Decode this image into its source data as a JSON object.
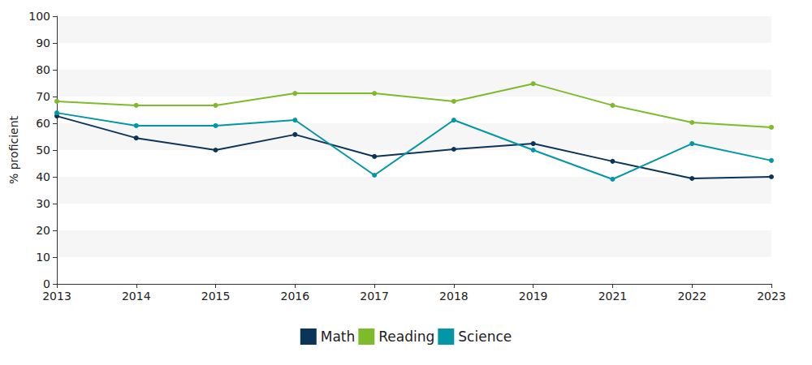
{
  "chart_data": {
    "type": "line",
    "y_label": "% proficient",
    "categories": [
      "2013",
      "2014",
      "2015",
      "2016",
      "2017",
      "2018",
      "2019",
      "2021",
      "2022",
      "2023"
    ],
    "series": [
      {
        "name": "Math",
        "color": "#0b3558",
        "values": [
          62.7,
          54.5,
          50.0,
          55.8,
          47.6,
          50.3,
          52.4,
          45.8,
          39.4,
          40.0
        ]
      },
      {
        "name": "Reading",
        "color": "#7dbb2a",
        "values": [
          68.2,
          66.7,
          66.7,
          71.2,
          71.2,
          68.2,
          74.8,
          66.7,
          60.3,
          58.5
        ]
      },
      {
        "name": "Science",
        "color": "#0396a6",
        "values": [
          63.9,
          59.1,
          59.1,
          61.2,
          40.6,
          61.2,
          50.0,
          39.1,
          52.4,
          46.1
        ]
      }
    ],
    "ylim": [
      0,
      100
    ],
    "yticks": [
      0,
      10,
      20,
      30,
      40,
      50,
      60,
      70,
      80,
      90,
      100
    ],
    "grid": true,
    "legend": "bottom",
    "marker": "circle"
  }
}
